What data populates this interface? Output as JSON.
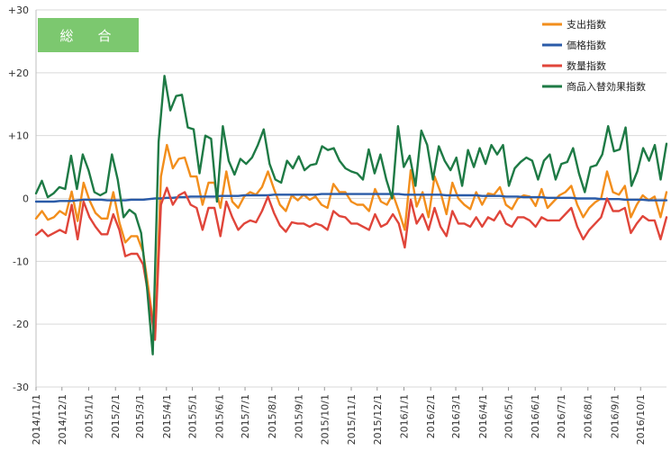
{
  "chart_data": {
    "type": "line",
    "title": "総　合",
    "ylim": [
      -30,
      30
    ],
    "y_ticks": [
      "+30",
      "+20",
      "+10",
      "0",
      "-10",
      "-20",
      "-30"
    ],
    "y_tick_values": [
      30,
      20,
      10,
      0,
      -10,
      -20,
      -30
    ],
    "x_ticks": [
      "2014/11/1",
      "2014/12/1",
      "2015/1/1",
      "2015/2/1",
      "2015/3/1",
      "2015/4/1",
      "2015/5/1",
      "2015/6/1",
      "2015/7/1",
      "2015/8/1",
      "2015/9/1",
      "2015/10/1",
      "2015/11/1",
      "2015/12/1",
      "2016/1/1",
      "2016/2/1",
      "2016/3/1",
      "2016/4/1",
      "2016/5/1",
      "2016/6/1",
      "2016/7/1",
      "2016/8/1",
      "2016/9/1",
      "2016/10/1"
    ],
    "x_start": "2014/11/1",
    "x_end": "2016/10/31",
    "grid": true,
    "legend_position": "top-right",
    "badge_color": "#7CC86F",
    "series": [
      {
        "name": "支出指数",
        "color": "#F28E1C",
        "values": [
          -3.2,
          -2.0,
          -3.4,
          -3.0,
          -2.0,
          -2.6,
          1.1,
          -3.6,
          2.5,
          -0.3,
          -2.3,
          -3.2,
          -3.2,
          1.0,
          -3.8,
          -7.0,
          -6.0,
          -6.0,
          -8.5,
          -15.0,
          -22.0,
          3.5,
          8.5,
          4.8,
          6.3,
          6.5,
          3.5,
          3.5,
          -1.0,
          2.5,
          2.5,
          -1.5,
          4.3,
          -0.5,
          -1.5,
          0.3,
          1.0,
          0.6,
          1.8,
          4.3,
          1.5,
          -1.0,
          -2.0,
          0.5,
          -0.3,
          0.6,
          -0.2,
          0.3,
          -1.0,
          -1.5,
          2.3,
          1.0,
          1.0,
          -0.5,
          -1.0,
          -1.0,
          -2.0,
          1.5,
          -0.5,
          -1.0,
          0.7,
          -2.0,
          -5.0,
          4.5,
          -1.3,
          1.0,
          -3.0,
          3.5,
          1.0,
          -2.5,
          2.5,
          0.0,
          -1.0,
          -1.7,
          1.0,
          -1.0,
          0.8,
          0.6,
          1.8,
          -1.0,
          -1.7,
          0.0,
          0.5,
          0.3,
          -1.2,
          1.5,
          -1.5,
          -0.5,
          0.5,
          1.0,
          2.0,
          -1.0,
          -3.0,
          -1.5,
          -0.6,
          0.0,
          4.3,
          1.0,
          0.6,
          2.0,
          -3.0,
          -1.0,
          0.5,
          -0.3,
          0.3,
          -3.0,
          1.0
        ]
      },
      {
        "name": "価格指数",
        "color": "#2A5BA8",
        "values": [
          -0.5,
          -0.5,
          -0.5,
          -0.5,
          -0.4,
          -0.4,
          -0.4,
          -0.3,
          -0.2,
          -0.2,
          -0.2,
          -0.2,
          -0.3,
          -0.3,
          -0.3,
          -0.3,
          -0.2,
          -0.2,
          -0.2,
          -0.1,
          0.0,
          0.0,
          0.1,
          0.1,
          0.2,
          0.2,
          0.3,
          0.3,
          0.3,
          0.3,
          0.3,
          0.4,
          0.4,
          0.4,
          0.4,
          0.5,
          0.5,
          0.5,
          0.5,
          0.5,
          0.6,
          0.6,
          0.6,
          0.6,
          0.6,
          0.6,
          0.6,
          0.6,
          0.7,
          0.7,
          0.7,
          0.7,
          0.7,
          0.7,
          0.7,
          0.7,
          0.7,
          0.7,
          0.7,
          0.7,
          0.7,
          0.7,
          0.6,
          0.6,
          0.6,
          0.6,
          0.6,
          0.6,
          0.6,
          0.5,
          0.5,
          0.5,
          0.5,
          0.5,
          0.5,
          0.4,
          0.4,
          0.4,
          0.4,
          0.3,
          0.3,
          0.3,
          0.2,
          0.2,
          0.2,
          0.2,
          0.1,
          0.1,
          0.1,
          0.1,
          0.1,
          0.0,
          0.0,
          0.0,
          0.0,
          -0.1,
          -0.1,
          -0.1,
          -0.1,
          -0.2,
          -0.2,
          -0.2,
          -0.2,
          -0.3,
          -0.3,
          -0.3,
          -0.3
        ]
      },
      {
        "name": "数量指数",
        "color": "#E0453A",
        "values": [
          -5.8,
          -5.0,
          -6.0,
          -5.5,
          -5.0,
          -5.5,
          -1.0,
          -6.5,
          -0.5,
          -3.0,
          -4.5,
          -5.7,
          -5.7,
          -2.5,
          -5.0,
          -9.2,
          -8.8,
          -8.8,
          -10.5,
          -16.0,
          -22.5,
          -1.0,
          1.7,
          -1.0,
          0.5,
          1.0,
          -1.0,
          -1.5,
          -5.0,
          -1.5,
          -1.5,
          -6.0,
          -0.5,
          -3.0,
          -5.0,
          -4.0,
          -3.5,
          -3.8,
          -2.0,
          0.3,
          -2.3,
          -4.3,
          -5.3,
          -3.8,
          -4.0,
          -4.0,
          -4.5,
          -4.0,
          -4.3,
          -5.0,
          -2.0,
          -2.8,
          -3.0,
          -4.0,
          -4.0,
          -4.5,
          -5.0,
          -2.5,
          -4.5,
          -4.0,
          -2.5,
          -4.0,
          -7.8,
          -0.2,
          -4.0,
          -2.5,
          -5.0,
          -1.5,
          -4.5,
          -6.0,
          -2.0,
          -4.0,
          -4.0,
          -4.5,
          -3.0,
          -4.5,
          -3.0,
          -3.5,
          -2.0,
          -4.0,
          -4.5,
          -3.0,
          -3.0,
          -3.5,
          -4.5,
          -3.0,
          -3.5,
          -3.5,
          -3.5,
          -2.5,
          -1.5,
          -4.5,
          -6.5,
          -5.0,
          -4.0,
          -3.0,
          0.0,
          -2.0,
          -2.0,
          -1.5,
          -5.5,
          -4.0,
          -2.8,
          -3.5,
          -3.5,
          -6.5,
          -3.0
        ]
      },
      {
        "name": "商品入替効果指数",
        "color": "#1E7A45",
        "values": [
          0.8,
          2.8,
          0.2,
          0.8,
          1.8,
          1.5,
          6.8,
          1.5,
          7.0,
          4.5,
          1.0,
          0.5,
          1.0,
          7.0,
          3.0,
          -3.0,
          -1.8,
          -2.5,
          -5.5,
          -14.0,
          -24.8,
          9.0,
          19.5,
          14.0,
          16.3,
          16.5,
          11.3,
          11.0,
          4.0,
          10.0,
          9.5,
          -0.5,
          11.5,
          6.0,
          3.8,
          6.3,
          5.5,
          6.5,
          8.5,
          11.0,
          5.5,
          3.0,
          2.5,
          6.0,
          4.8,
          6.7,
          4.5,
          5.3,
          5.5,
          8.3,
          7.7,
          8.0,
          6.0,
          4.8,
          4.3,
          4.0,
          3.0,
          7.8,
          4.0,
          7.0,
          3.0,
          0.0,
          11.5,
          5.0,
          6.8,
          2.0,
          10.8,
          8.5,
          3.0,
          8.3,
          6.0,
          4.5,
          6.5,
          2.0,
          7.7,
          5.0,
          8.0,
          5.5,
          8.5,
          7.0,
          8.5,
          2.0,
          4.8,
          5.8,
          6.5,
          6.0,
          3.0,
          6.0,
          7.0,
          3.0,
          5.5,
          5.8,
          8.0,
          4.0,
          1.0,
          5.0,
          5.3,
          7.0,
          11.5,
          7.5,
          7.8,
          11.3,
          2.0,
          4.3,
          8.0,
          6.0,
          8.5,
          3.0,
          8.7
        ]
      }
    ]
  }
}
